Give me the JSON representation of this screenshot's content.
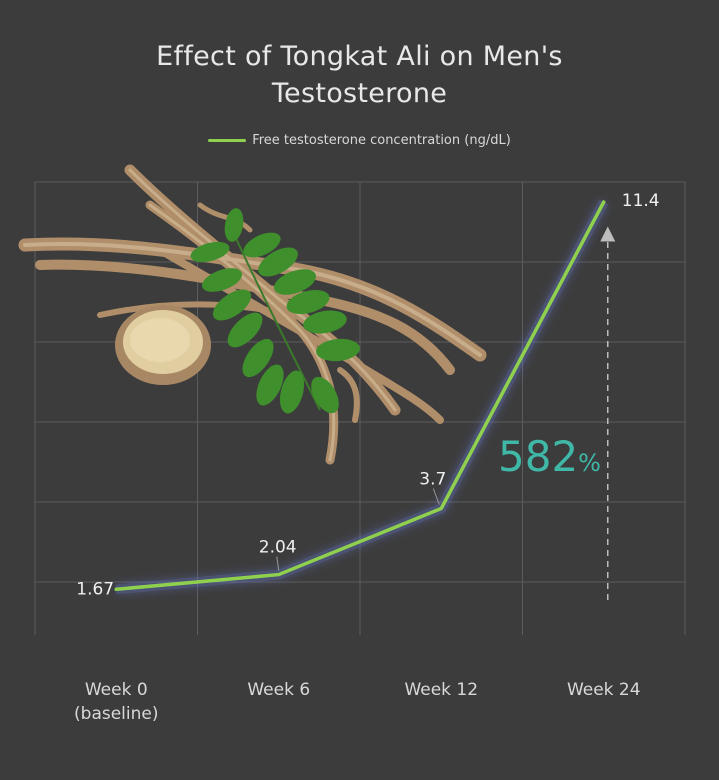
{
  "title_line1": "Effect of Tongkat Ali on Men's",
  "title_line2": "Testosterone",
  "legend_label": "Free testosterone concentration (ng/dL)",
  "increase_value": "582",
  "increase_unit": "%",
  "colors": {
    "background": "#3c3c3c",
    "line": "#8fd14f",
    "accent": "#3fb8a8",
    "grid": "#5c5c5c"
  },
  "chart_data": {
    "type": "line",
    "categories": [
      "Week 0 (baseline)",
      "Week 6",
      "Week 12",
      "Week 24"
    ],
    "category_lines": [
      [
        "Week 0",
        "(baseline)"
      ],
      [
        "Week 6"
      ],
      [
        "Week 12"
      ],
      [
        "Week 24"
      ]
    ],
    "series": [
      {
        "name": "Free testosterone concentration (ng/dL)",
        "values": [
          1.67,
          2.04,
          3.7,
          11.4
        ],
        "labels": [
          "1.67",
          "2.04",
          "3.7",
          "11.4"
        ]
      }
    ],
    "title": "Effect of Tongkat Ali on Men's Testosterone",
    "xlabel": "",
    "ylabel": "",
    "ylim": [
      1.2,
      11.4
    ],
    "grid": true,
    "legend": "top-center",
    "annotation": "582%"
  }
}
